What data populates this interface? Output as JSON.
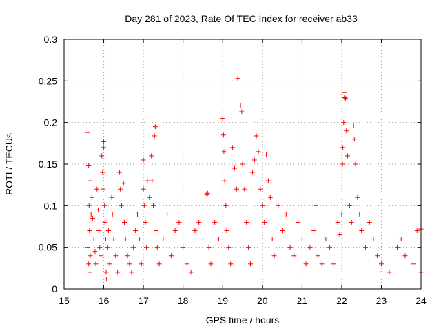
{
  "chart_data": {
    "type": "scatter",
    "title": "Day 281 of 2023, Rate Of TEC Index for receiver ab33",
    "xlabel": "GPS time / hours",
    "ylabel": "ROTI / TECUs",
    "xlim": [
      15,
      24
    ],
    "ylim": [
      0,
      0.3
    ],
    "x_ticks": [
      15,
      16,
      17,
      18,
      19,
      20,
      21,
      22,
      23,
      24
    ],
    "x_tick_labels": [
      "15",
      "16",
      "17",
      "18",
      "19",
      "20",
      "21",
      "22",
      "23",
      "24"
    ],
    "y_ticks": [
      0,
      0.05,
      0.1,
      0.15,
      0.2,
      0.25,
      0.3
    ],
    "y_tick_labels": [
      "0",
      "0.05",
      "0.1",
      "0.15",
      "0.2",
      "0.25",
      "0.3"
    ],
    "grid": true,
    "marker": "plus",
    "color": "#ff0000",
    "series": [
      {
        "points": [
          [
            15.6,
            0.188
          ],
          [
            15.62,
            0.148
          ],
          [
            15.65,
            0.13
          ],
          [
            15.63,
            0.1
          ],
          [
            15.68,
            0.09
          ],
          [
            15.64,
            0.07
          ],
          [
            15.6,
            0.05
          ],
          [
            15.66,
            0.04
          ],
          [
            15.62,
            0.03
          ],
          [
            15.65,
            0.02
          ],
          [
            15.7,
            0.11
          ],
          [
            15.72,
            0.085
          ],
          [
            15.75,
            0.06
          ],
          [
            15.78,
            0.045
          ],
          [
            15.8,
            0.03
          ],
          [
            15.83,
            0.12
          ],
          [
            15.86,
            0.095
          ],
          [
            15.88,
            0.07
          ],
          [
            15.9,
            0.05
          ],
          [
            15.93,
            0.04
          ],
          [
            15.95,
            0.16
          ],
          [
            15.97,
            0.14
          ],
          [
            15.98,
            0.12
          ],
          [
            16.0,
            0.177
          ],
          [
            16.0,
            0.17
          ],
          [
            16.02,
            0.1
          ],
          [
            16.03,
            0.08
          ],
          [
            16.05,
            0.06
          ],
          [
            16.06,
            0.02
          ],
          [
            16.07,
            0.012
          ],
          [
            16.1,
            0.05
          ],
          [
            16.12,
            0.07
          ],
          [
            16.15,
            0.03
          ],
          [
            16.2,
            0.11
          ],
          [
            16.22,
            0.09
          ],
          [
            16.25,
            0.06
          ],
          [
            16.3,
            0.04
          ],
          [
            16.35,
            0.02
          ],
          [
            16.4,
            0.14
          ],
          [
            16.42,
            0.12
          ],
          [
            16.45,
            0.1
          ],
          [
            16.5,
            0.127
          ],
          [
            16.52,
            0.08
          ],
          [
            16.55,
            0.06
          ],
          [
            16.6,
            0.04
          ],
          [
            16.65,
            0.03
          ],
          [
            16.7,
            0.02
          ],
          [
            16.75,
            0.05
          ],
          [
            16.8,
            0.07
          ],
          [
            16.85,
            0.09
          ],
          [
            16.9,
            0.06
          ],
          [
            16.95,
            0.03
          ],
          [
            17.0,
            0.155
          ],
          [
            17.0,
            0.12
          ],
          [
            17.02,
            0.1
          ],
          [
            17.05,
            0.08
          ],
          [
            17.08,
            0.05
          ],
          [
            17.1,
            0.13
          ],
          [
            17.15,
            0.11
          ],
          [
            17.2,
            0.16
          ],
          [
            17.22,
            0.13
          ],
          [
            17.25,
            0.1
          ],
          [
            17.28,
            0.184
          ],
          [
            17.3,
            0.195
          ],
          [
            17.32,
            0.07
          ],
          [
            17.35,
            0.05
          ],
          [
            17.4,
            0.03
          ],
          [
            17.5,
            0.06
          ],
          [
            17.6,
            0.09
          ],
          [
            17.7,
            0.04
          ],
          [
            17.8,
            0.07
          ],
          [
            17.9,
            0.08
          ],
          [
            18.0,
            0.05
          ],
          [
            18.1,
            0.03
          ],
          [
            18.2,
            0.02
          ],
          [
            18.3,
            0.07
          ],
          [
            18.4,
            0.08
          ],
          [
            18.5,
            0.06
          ],
          [
            18.6,
            0.113
          ],
          [
            18.62,
            0.115
          ],
          [
            18.65,
            0.05
          ],
          [
            18.7,
            0.03
          ],
          [
            18.8,
            0.08
          ],
          [
            18.9,
            0.06
          ],
          [
            19.0,
            0.205
          ],
          [
            19.02,
            0.185
          ],
          [
            19.03,
            0.165
          ],
          [
            19.05,
            0.13
          ],
          [
            19.08,
            0.1
          ],
          [
            19.1,
            0.07
          ],
          [
            19.15,
            0.05
          ],
          [
            19.2,
            0.03
          ],
          [
            19.25,
            0.17
          ],
          [
            19.3,
            0.145
          ],
          [
            19.35,
            0.12
          ],
          [
            19.38,
            0.253
          ],
          [
            19.45,
            0.22
          ],
          [
            19.48,
            0.213
          ],
          [
            19.5,
            0.15
          ],
          [
            19.55,
            0.12
          ],
          [
            19.6,
            0.08
          ],
          [
            19.65,
            0.05
          ],
          [
            19.7,
            0.03
          ],
          [
            19.75,
            0.14
          ],
          [
            19.8,
            0.155
          ],
          [
            19.85,
            0.184
          ],
          [
            19.9,
            0.165
          ],
          [
            19.95,
            0.12
          ],
          [
            20.0,
            0.1
          ],
          [
            20.05,
            0.08
          ],
          [
            20.1,
            0.162
          ],
          [
            20.15,
            0.13
          ],
          [
            20.2,
            0.11
          ],
          [
            20.25,
            0.06
          ],
          [
            20.3,
            0.04
          ],
          [
            20.4,
            0.1
          ],
          [
            20.5,
            0.07
          ],
          [
            20.6,
            0.09
          ],
          [
            20.7,
            0.05
          ],
          [
            20.8,
            0.04
          ],
          [
            20.9,
            0.08
          ],
          [
            21.0,
            0.06
          ],
          [
            21.1,
            0.03
          ],
          [
            21.2,
            0.05
          ],
          [
            21.3,
            0.07
          ],
          [
            21.35,
            0.1
          ],
          [
            21.4,
            0.04
          ],
          [
            21.5,
            0.03
          ],
          [
            21.6,
            0.06
          ],
          [
            21.7,
            0.05
          ],
          [
            21.8,
            0.03
          ],
          [
            21.9,
            0.08
          ],
          [
            21.95,
            0.065
          ],
          [
            22.0,
            0.09
          ],
          [
            22.02,
            0.15
          ],
          [
            22.03,
            0.17
          ],
          [
            22.05,
            0.2
          ],
          [
            22.07,
            0.23
          ],
          [
            22.08,
            0.236
          ],
          [
            22.1,
            0.229
          ],
          [
            22.12,
            0.19
          ],
          [
            22.15,
            0.16
          ],
          [
            22.2,
            0.1
          ],
          [
            22.25,
            0.08
          ],
          [
            22.3,
            0.196
          ],
          [
            22.32,
            0.18
          ],
          [
            22.35,
            0.15
          ],
          [
            22.4,
            0.11
          ],
          [
            22.45,
            0.09
          ],
          [
            22.5,
            0.07
          ],
          [
            22.6,
            0.05
          ],
          [
            22.7,
            0.08
          ],
          [
            22.8,
            0.06
          ],
          [
            22.9,
            0.04
          ],
          [
            23.0,
            0.03
          ],
          [
            23.2,
            0.02
          ],
          [
            23.4,
            0.05
          ],
          [
            23.5,
            0.06
          ],
          [
            23.6,
            0.04
          ],
          [
            23.8,
            0.03
          ],
          [
            23.9,
            0.07
          ],
          [
            24.0,
            0.072
          ],
          [
            24.0,
            0.02
          ]
        ]
      }
    ]
  }
}
